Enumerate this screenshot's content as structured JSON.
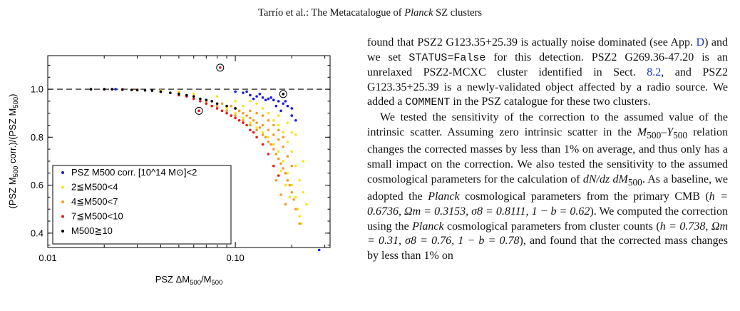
{
  "header": {
    "authors": "Tarrío et al.: The Metacatalogue of ",
    "planck": "Planck",
    "rest": " SZ clusters"
  },
  "chart_data": {
    "type": "scatter",
    "title": "",
    "xlabel": "PSZ ΔM500/M500",
    "ylabel": "(PSZ M500 corr.)/(PSZ M500)",
    "x_scale": "log",
    "xlim": [
      0.01,
      0.32
    ],
    "ylim": [
      0.34,
      1.14
    ],
    "x_ticks": [
      {
        "v": 0.01,
        "label": "0.01"
      },
      {
        "v": 0.1,
        "label": "0.10"
      }
    ],
    "y_ticks": [
      {
        "v": 0.4,
        "label": "0.4"
      },
      {
        "v": 0.6,
        "label": "0.6"
      },
      {
        "v": 0.8,
        "label": "0.8"
      },
      {
        "v": 1.0,
        "label": "1.0"
      }
    ],
    "reference_line": 1.0,
    "grid": false,
    "legend_placement": "bottom-left",
    "legend": [
      {
        "label": "PSZ M500 corr. [10^14 M⊙]<2",
        "color": "#1a1adb"
      },
      {
        "label": "2≦M500<4",
        "color": "#f2e61a"
      },
      {
        "label": "4≦M500<7",
        "color": "#f59a26"
      },
      {
        "label": "7≦M500<10",
        "color": "#e51a1a"
      },
      {
        "label": "M500≧10",
        "color": "#000000"
      }
    ],
    "circled_points": [
      [
        0.083,
        1.09
      ],
      [
        0.064,
        0.91
      ],
      [
        0.18,
        0.98
      ]
    ],
    "series": [
      {
        "name": "PSZ M500 corr. [10^14 M⊙]<2",
        "color": "#1a1adb",
        "points": [
          [
            0.11,
            0.985
          ],
          [
            0.12,
            0.975
          ],
          [
            0.13,
            0.97
          ],
          [
            0.14,
            0.965
          ],
          [
            0.15,
            0.96
          ],
          [
            0.16,
            0.955
          ],
          [
            0.17,
            0.95
          ],
          [
            0.18,
            0.94
          ],
          [
            0.19,
            0.93
          ],
          [
            0.2,
            0.92
          ],
          [
            0.155,
            0.965
          ],
          [
            0.135,
            0.98
          ],
          [
            0.125,
            0.96
          ],
          [
            0.165,
            0.93
          ],
          [
            0.175,
            0.91
          ],
          [
            0.2,
            0.89
          ],
          [
            0.21,
            0.87
          ],
          [
            0.145,
            0.955
          ],
          [
            0.185,
            0.95
          ],
          [
            0.28,
            0.33
          ],
          [
            0.023,
            1.0
          ],
          [
            0.1,
            0.99
          ],
          [
            0.115,
            0.99
          ]
        ]
      },
      {
        "name": "2≦M500<4",
        "color": "#f2e61a",
        "points": [
          [
            0.07,
            0.95
          ],
          [
            0.09,
            0.92
          ],
          [
            0.1,
            0.9
          ],
          [
            0.11,
            0.88
          ],
          [
            0.12,
            0.86
          ],
          [
            0.13,
            0.84
          ],
          [
            0.14,
            0.82
          ],
          [
            0.15,
            0.8
          ],
          [
            0.16,
            0.77
          ],
          [
            0.17,
            0.74
          ],
          [
            0.18,
            0.7
          ],
          [
            0.19,
            0.65
          ],
          [
            0.2,
            0.6
          ],
          [
            0.21,
            0.55
          ],
          [
            0.22,
            0.47
          ],
          [
            0.16,
            0.87
          ],
          [
            0.17,
            0.85
          ],
          [
            0.18,
            0.82
          ],
          [
            0.19,
            0.78
          ],
          [
            0.15,
            0.9
          ],
          [
            0.14,
            0.92
          ],
          [
            0.13,
            0.94
          ],
          [
            0.12,
            0.95
          ],
          [
            0.2,
            0.74
          ],
          [
            0.21,
            0.68
          ],
          [
            0.22,
            0.62
          ],
          [
            0.23,
            0.57
          ],
          [
            0.24,
            0.52
          ],
          [
            0.21,
            0.81
          ],
          [
            0.19,
            0.86
          ],
          [
            0.17,
            0.89
          ],
          [
            0.11,
            0.93
          ],
          [
            0.1,
            0.95
          ],
          [
            0.08,
            0.97
          ],
          [
            0.06,
            0.98
          ],
          [
            0.05,
            0.99
          ],
          [
            0.04,
            0.995
          ],
          [
            0.02,
            1.0
          ],
          [
            0.03,
            0.998
          ],
          [
            0.175,
            0.66
          ],
          [
            0.185,
            0.6
          ],
          [
            0.195,
            0.55
          ],
          [
            0.215,
            0.5
          ],
          [
            0.225,
            0.44
          ],
          [
            0.2,
            0.82
          ],
          [
            0.23,
            0.7
          ]
        ]
      },
      {
        "name": "4≦M500<7",
        "color": "#f59a26",
        "points": [
          [
            0.06,
            0.97
          ],
          [
            0.07,
            0.95
          ],
          [
            0.08,
            0.93
          ],
          [
            0.09,
            0.91
          ],
          [
            0.1,
            0.89
          ],
          [
            0.11,
            0.87
          ],
          [
            0.12,
            0.85
          ],
          [
            0.13,
            0.83
          ],
          [
            0.14,
            0.81
          ],
          [
            0.15,
            0.78
          ],
          [
            0.16,
            0.75
          ],
          [
            0.17,
            0.71
          ],
          [
            0.18,
            0.67
          ],
          [
            0.19,
            0.62
          ],
          [
            0.2,
            0.57
          ],
          [
            0.21,
            0.5
          ],
          [
            0.22,
            0.44
          ],
          [
            0.1,
            0.92
          ],
          [
            0.11,
            0.9
          ],
          [
            0.12,
            0.88
          ],
          [
            0.13,
            0.86
          ],
          [
            0.14,
            0.85
          ],
          [
            0.15,
            0.83
          ],
          [
            0.16,
            0.81
          ],
          [
            0.17,
            0.79
          ],
          [
            0.18,
            0.76
          ],
          [
            0.19,
            0.72
          ],
          [
            0.2,
            0.68
          ],
          [
            0.05,
            0.985
          ],
          [
            0.04,
            0.99
          ],
          [
            0.03,
            0.996
          ],
          [
            0.02,
            1.0
          ],
          [
            0.085,
            0.94
          ],
          [
            0.095,
            0.93
          ],
          [
            0.105,
            0.91
          ],
          [
            0.115,
            0.89
          ],
          [
            0.125,
            0.87
          ],
          [
            0.135,
            0.84
          ],
          [
            0.145,
            0.8
          ],
          [
            0.155,
            0.77
          ],
          [
            0.165,
            0.73
          ],
          [
            0.175,
            0.69
          ],
          [
            0.185,
            0.65
          ],
          [
            0.195,
            0.6
          ],
          [
            0.205,
            0.54
          ],
          [
            0.12,
            0.91
          ],
          [
            0.13,
            0.9
          ],
          [
            0.14,
            0.89
          ],
          [
            0.15,
            0.87
          ],
          [
            0.16,
            0.85
          ],
          [
            0.17,
            0.83
          ],
          [
            0.18,
            0.8
          ],
          [
            0.165,
            0.62
          ],
          [
            0.175,
            0.56
          ],
          [
            0.185,
            0.52
          ]
        ]
      },
      {
        "name": "7≦M500<10",
        "color": "#e51a1a",
        "points": [
          [
            0.03,
            0.998
          ],
          [
            0.04,
            0.99
          ],
          [
            0.05,
            0.975
          ],
          [
            0.06,
            0.96
          ],
          [
            0.07,
            0.94
          ],
          [
            0.08,
            0.92
          ],
          [
            0.09,
            0.9
          ],
          [
            0.1,
            0.88
          ],
          [
            0.11,
            0.86
          ],
          [
            0.12,
            0.83
          ],
          [
            0.13,
            0.8
          ],
          [
            0.14,
            0.77
          ],
          [
            0.15,
            0.73
          ],
          [
            0.16,
            0.68
          ],
          [
            0.065,
            0.95
          ],
          [
            0.075,
            0.93
          ],
          [
            0.085,
            0.91
          ],
          [
            0.095,
            0.89
          ],
          [
            0.105,
            0.87
          ],
          [
            0.02,
            1.0
          ],
          [
            0.025,
            1.0
          ],
          [
            0.045,
            0.985
          ],
          [
            0.055,
            0.97
          ],
          [
            0.083,
            1.09
          ],
          [
            0.064,
            0.91
          ],
          [
            0.17,
            0.64
          ],
          [
            0.115,
            0.85
          ],
          [
            0.125,
            0.82
          ]
        ]
      },
      {
        "name": "M500≧10",
        "color": "#000000",
        "points": [
          [
            0.017,
            1.0
          ],
          [
            0.02,
            1.0
          ],
          [
            0.022,
            1.0
          ],
          [
            0.025,
            0.998
          ],
          [
            0.028,
            0.997
          ],
          [
            0.03,
            0.996
          ],
          [
            0.033,
            0.995
          ],
          [
            0.036,
            0.994
          ],
          [
            0.04,
            0.99
          ],
          [
            0.045,
            0.985
          ],
          [
            0.05,
            0.98
          ],
          [
            0.055,
            0.975
          ],
          [
            0.06,
            0.97
          ],
          [
            0.065,
            0.96
          ],
          [
            0.07,
            0.955
          ],
          [
            0.075,
            0.95
          ],
          [
            0.08,
            0.94
          ],
          [
            0.09,
            0.93
          ],
          [
            0.1,
            0.92
          ],
          [
            0.18,
            0.98
          ]
        ]
      }
    ]
  },
  "paragraphs": {
    "p1": {
      "a": "found that PSZ2 G123.35+25.39 is actually noise dominated (see App. ",
      "link1": "D",
      "b": ") and we set ",
      "mono1": "STATUS=False",
      "c": " for this detection. PSZ2 G269.36-47.20 is an unrelaxed PSZ2-MCXC cluster identified in Sect. ",
      "link2": "8.2",
      "d": ", and PSZ2 G123.35+25.39 is a newly-validated object affected by a radio source. We added a ",
      "mono2": "COMMENT",
      "e": " in the PSZ catalogue for these two clusters."
    },
    "p2": {
      "a": "We tested the sensitivity of the correction to the assumed value of the intrinsic scatter. Assuming zero intrinsic scatter in the ",
      "m1": "M",
      "m1sub": "500",
      "dash": "–",
      "y1": "Y",
      "y1sub": "500",
      "b": " relation changes the corrected masses by less than 1% on average, and thus only has a small impact on the correction. We also tested the sensitivity to the assumed cosmological parameters for the calculation of ",
      "dndz": "dN/dz dM",
      "dndzsub": "500",
      "c": ". As a baseline, we adopted the ",
      "planck1": "Planck",
      "d": " cosmological parameters from the primary CMB (",
      "params1": "h = 0.6736, Ωm = 0.3153, σ8 = 0.8111, 1 − b = 0.62",
      "e": "). We computed the correction using the ",
      "planck2": "Planck",
      "f": " cosmological parameters from cluster counts (",
      "params2": "h = 0.738, Ωm = 0.31, σ8 = 0.76, 1 − b = 0.78",
      "g": "), and found that the corrected mass changes by less than 1% on"
    }
  }
}
